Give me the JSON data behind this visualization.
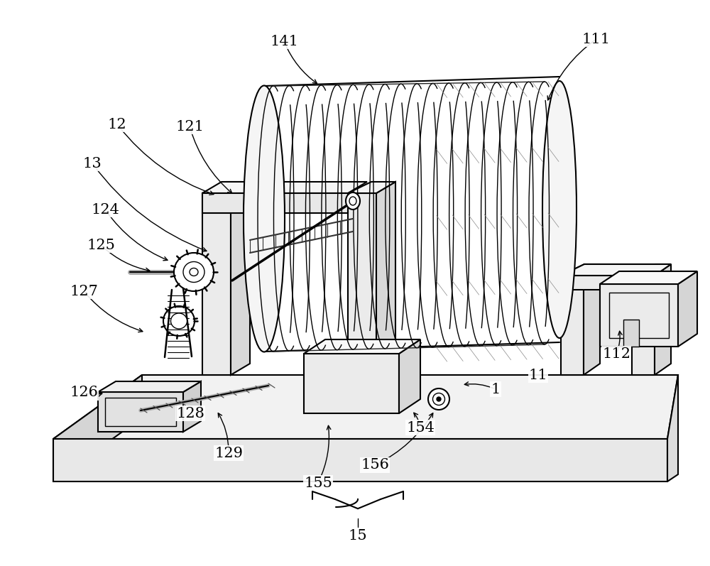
{
  "bg_color": "#ffffff",
  "line_color": "#000000",
  "figsize": [
    10.0,
    7.97
  ],
  "dpi": 100,
  "annotations": [
    [
      "111",
      840,
      55,
      770,
      145
    ],
    [
      "141",
      400,
      58,
      450,
      120
    ],
    [
      "12",
      165,
      175,
      305,
      275
    ],
    [
      "121",
      267,
      178,
      330,
      275
    ],
    [
      "13",
      130,
      230,
      295,
      355
    ],
    [
      "124",
      148,
      295,
      240,
      368
    ],
    [
      "125",
      142,
      345,
      215,
      382
    ],
    [
      "127",
      118,
      410,
      205,
      468
    ],
    [
      "126",
      118,
      553,
      148,
      553
    ],
    [
      "128",
      268,
      582,
      278,
      568
    ],
    [
      "129",
      322,
      638,
      305,
      578
    ],
    [
      "155",
      448,
      680,
      462,
      595
    ],
    [
      "156",
      528,
      655,
      612,
      578
    ],
    [
      "154",
      592,
      602,
      580,
      578
    ],
    [
      "1",
      698,
      548,
      650,
      542
    ],
    [
      "11",
      758,
      528,
      758,
      525
    ],
    [
      "112",
      868,
      498,
      872,
      462
    ]
  ]
}
